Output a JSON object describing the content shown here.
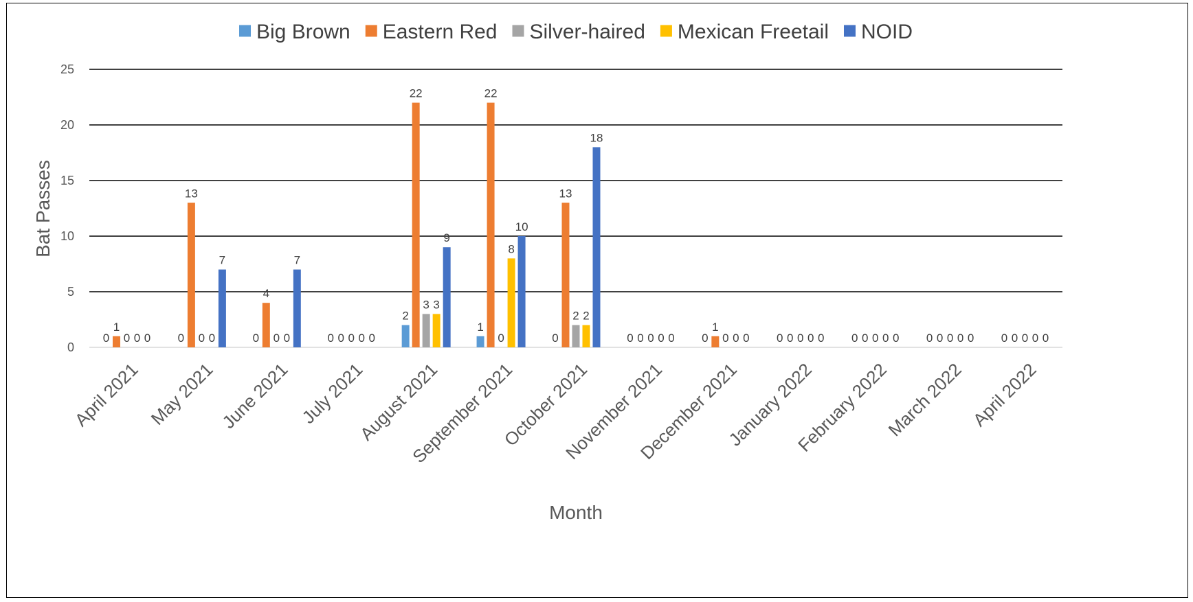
{
  "chart_data": {
    "type": "bar",
    "title": "",
    "xlabel": "Month",
    "ylabel": "Bat Passes",
    "ylim": [
      0,
      25
    ],
    "yticks": [
      0,
      5,
      10,
      15,
      20,
      25
    ],
    "grid": "horizontal",
    "legend_position": "top",
    "categories": [
      "April 2021",
      "May 2021",
      "June 2021",
      "July 2021",
      "August 2021",
      "September 2021",
      "October 2021",
      "November 2021",
      "December 2021",
      "January 2022",
      "February 2022",
      "March 2022",
      "April 2022"
    ],
    "series": [
      {
        "name": "Big Brown",
        "color": "#5B9BD5",
        "values": [
          0,
          0,
          0,
          0,
          2,
          1,
          0,
          0,
          0,
          0,
          0,
          0,
          0
        ]
      },
      {
        "name": "Eastern Red",
        "color": "#ED7D31",
        "values": [
          1,
          13,
          4,
          0,
          22,
          22,
          13,
          0,
          1,
          0,
          0,
          0,
          0
        ]
      },
      {
        "name": "Silver-haired",
        "color": "#A5A5A5",
        "values": [
          0,
          0,
          0,
          0,
          3,
          0,
          2,
          0,
          0,
          0,
          0,
          0,
          0
        ]
      },
      {
        "name": "Mexican Freetail",
        "color": "#FFC000",
        "values": [
          0,
          0,
          0,
          0,
          3,
          8,
          2,
          0,
          0,
          0,
          0,
          0,
          0
        ]
      },
      {
        "name": "NOID",
        "color": "#4472C4",
        "values": [
          0,
          7,
          7,
          0,
          9,
          10,
          18,
          0,
          0,
          0,
          0,
          0,
          0
        ]
      }
    ]
  }
}
